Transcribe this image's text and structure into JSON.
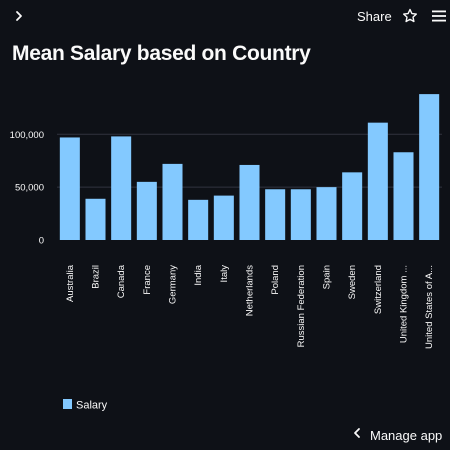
{
  "header": {
    "share_label": "Share",
    "icons": {
      "sidebar_toggle": "chevron-right-icon",
      "star": "star-icon",
      "menu": "hamburger-menu-icon"
    }
  },
  "page": {
    "title": "Mean Salary based on Country"
  },
  "footer": {
    "manage_app_label": "Manage app",
    "manage_app_icon": "chevron-left-icon"
  },
  "colors": {
    "background": "#0e1117",
    "bar": "#83c9ff",
    "text": "#fafafa",
    "grid": "#31333f"
  },
  "chart_data": {
    "type": "bar",
    "title": "Mean Salary based on Country",
    "xlabel": "",
    "ylabel": "",
    "categories": [
      "Australia",
      "Brazil",
      "Canada",
      "France",
      "Germany",
      "India",
      "Italy",
      "Netherlands",
      "Poland",
      "Russian Federation",
      "Spain",
      "Sweden",
      "Switzerland",
      "United Kingdom ...",
      "United States of A..."
    ],
    "series": [
      {
        "name": "Salary",
        "values": [
          97000,
          39000,
          98000,
          55000,
          72000,
          38000,
          42000,
          71000,
          48000,
          48000,
          50000,
          64000,
          111000,
          83000,
          138000
        ]
      }
    ],
    "yticks": [
      0,
      50000,
      100000
    ],
    "ytick_labels": [
      "0",
      "50,000",
      "100,000"
    ],
    "ylim": [
      0,
      140000
    ],
    "grid": true,
    "legend": {
      "position": "bottom-left",
      "entries": [
        "Salary"
      ]
    }
  }
}
